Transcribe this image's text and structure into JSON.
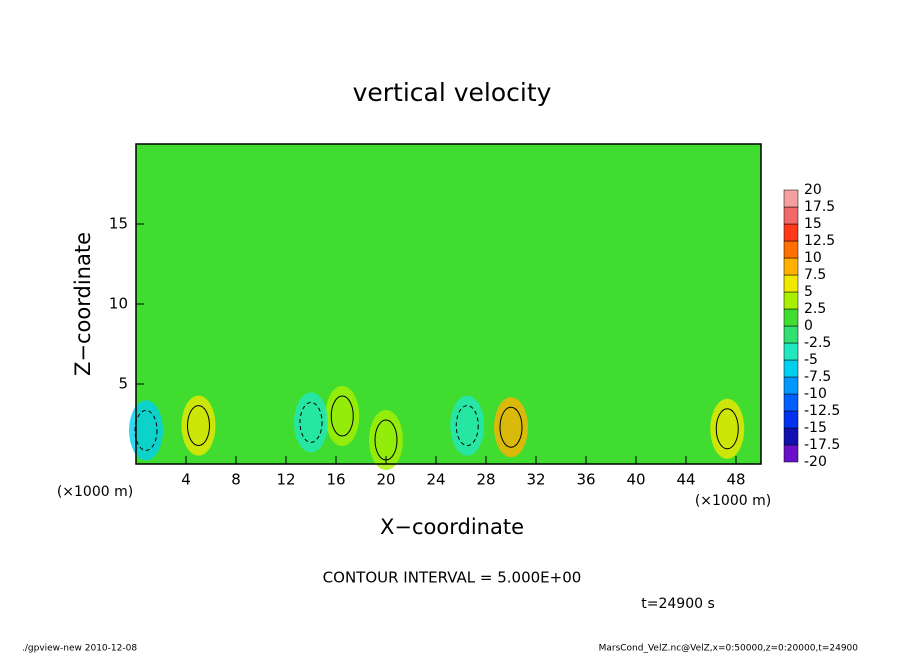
{
  "chart_data": {
    "type": "contour",
    "title": "vertical velocity",
    "xlabel": "X−coordinate",
    "ylabel": "Z−coordinate",
    "xunit": "(×1000 m)",
    "yunit": "(×1000 m)",
    "xlim": [
      0,
      50
    ],
    "xticks": [
      4,
      8,
      12,
      16,
      20,
      24,
      28,
      32,
      36,
      40,
      44,
      48
    ],
    "ylim": [
      0,
      20
    ],
    "yticks": [
      5,
      10,
      15
    ],
    "background_value": 1,
    "field_peaks": [
      {
        "x": 30,
        "z": 2.3,
        "value": 7.5
      },
      {
        "x": 47.3,
        "z": 2.2,
        "value": 6
      },
      {
        "x": 5,
        "z": 2.4,
        "value": 5
      },
      {
        "x": 16.5,
        "z": 3,
        "value": 4
      },
      {
        "x": 20,
        "z": 1.5,
        "value": 3
      },
      {
        "x": 0.8,
        "z": 2.1,
        "value": -7.5
      },
      {
        "x": 14,
        "z": 2.6,
        "value": -3
      },
      {
        "x": 26.5,
        "z": 2.4,
        "value": -4
      }
    ],
    "colorbar": {
      "levels": [
        -20,
        -17.5,
        -15,
        -12.5,
        -10,
        -7.5,
        -5,
        -2.5,
        0,
        2.5,
        5,
        7.5,
        10,
        12.5,
        15,
        17.5,
        20
      ],
      "colors": [
        "#6a10c8",
        "#1010b0",
        "#0030f0",
        "#0060ff",
        "#0098ff",
        "#00d0f0",
        "#20e8c0",
        "#30e070",
        "#40dd30",
        "#a8f000",
        "#f0e800",
        "#ffb000",
        "#ff7000",
        "#ff3818",
        "#f06868",
        "#f4a0a0"
      ]
    },
    "annotation": "CONTOUR INTERVAL = 5.000E+00",
    "time_label": "t=24900 s",
    "footer_left": "./gpview-new  2010-12-08",
    "footer_right": "MarsCond_VelZ.nc@VelZ,x=0:50000,z=0:20000,t=24900"
  }
}
